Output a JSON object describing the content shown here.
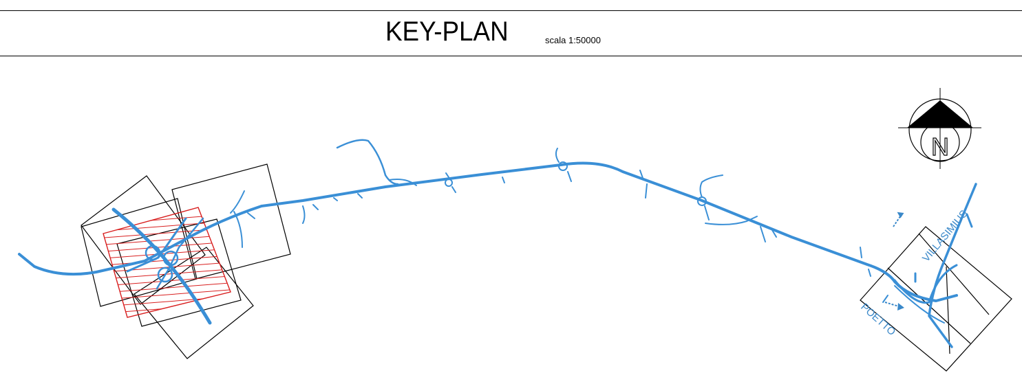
{
  "title": {
    "main": "KEY-PLAN",
    "scale": "scala 1:50000"
  },
  "compass": {
    "letter": "N"
  },
  "labels": {
    "villasimius": "VILLASIMIUS",
    "poetto": "POETTO"
  },
  "colors": {
    "road": "#3a8fd6",
    "hatch": "#d81e1e",
    "frames": "#000000"
  },
  "icons": [
    "compass-rose-icon",
    "direction-arrow-icon"
  ]
}
